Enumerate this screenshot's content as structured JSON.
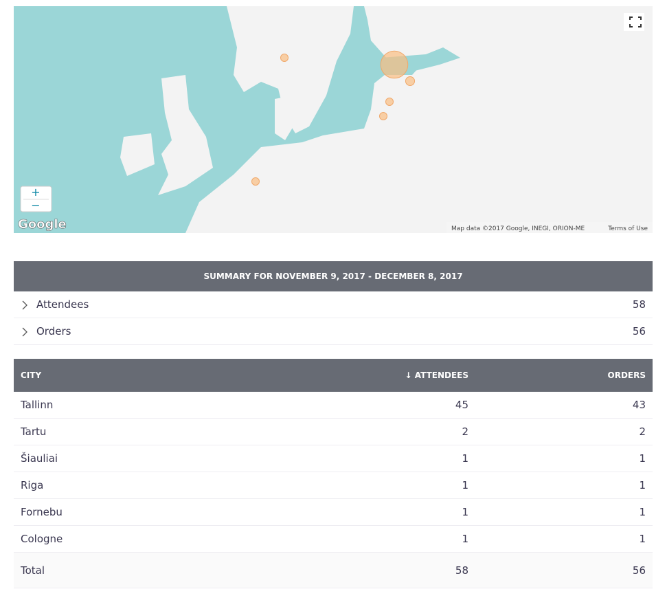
{
  "map": {
    "logo": "Google",
    "zoom_in": "+",
    "zoom_out": "−",
    "attribution": "Map data ©2017 Google, INEGI, ORION-ME",
    "terms": "Terms of Use"
  },
  "summary": {
    "title": "SUMMARY FOR NOVEMBER 9, 2017 - DECEMBER 8, 2017",
    "rows": [
      [
        "Attendees",
        58
      ],
      [
        "Orders",
        56
      ]
    ]
  },
  "table": {
    "headers": [
      "CITY",
      "↓ ATTENDEES",
      "ORDERS"
    ],
    "rows": [
      [
        "Tallinn",
        45,
        43
      ],
      [
        "Tartu",
        2,
        2
      ],
      [
        "Šiauliai",
        1,
        1
      ],
      [
        "Riga",
        1,
        1
      ],
      [
        "Fornebu",
        1,
        1
      ],
      [
        "Cologne",
        1,
        1
      ]
    ],
    "total": [
      "Total",
      58,
      56
    ]
  }
}
